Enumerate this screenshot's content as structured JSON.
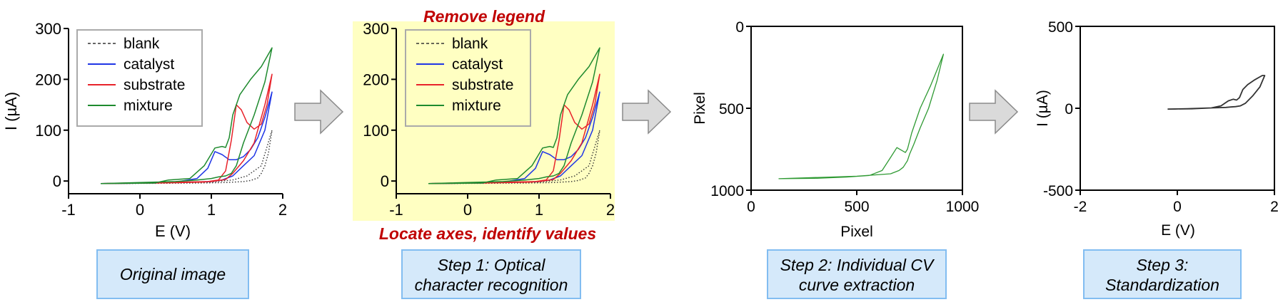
{
  "colors": {
    "blank": "#333333",
    "catalyst": "#1f35e6",
    "substrate": "#e8222a",
    "mixture": "#1e8a2e",
    "extracted": "#2f9a33",
    "standardized": "#333333",
    "highlight": "#ffffc2",
    "callout": "#c00000",
    "step_box_fill": "#d5e9fa",
    "step_box_border": "#82bdf1",
    "arrow_fill": "#dadada",
    "arrow_stroke": "#8a8a8a"
  },
  "legend": [
    {
      "key": "blank",
      "label": "blank"
    },
    {
      "key": "catalyst",
      "label": "catalyst"
    },
    {
      "key": "substrate",
      "label": "substrate"
    },
    {
      "key": "mixture",
      "label": "mixture"
    }
  ],
  "captions": {
    "original": [
      "Original image"
    ],
    "step1": [
      "Step 1: Optical",
      "character recognition"
    ],
    "step2": [
      "Step 2: Individual CV",
      "curve extraction"
    ],
    "step3": [
      "Step 3:",
      "Standardization"
    ]
  },
  "annotations": {
    "remove_legend": "Remove legend",
    "locate_axes": "Locate axes, identify values"
  },
  "chart_data": [
    {
      "id": "original",
      "type": "line",
      "title": "Original image",
      "xlabel": "E (V)",
      "ylabel": "I (µA)",
      "xlim": [
        -1,
        2
      ],
      "ylim": [
        -25,
        300
      ],
      "xticks": [
        -1,
        0,
        1,
        2
      ],
      "yticks": [
        0,
        100,
        200,
        300
      ],
      "legend_position": "top-left",
      "series": [
        {
          "name": "blank",
          "style": "dotted",
          "x": [
            -0.55,
            0.2,
            0.8,
            1.2,
            1.45,
            1.55,
            1.65,
            1.7,
            1.75,
            1.8,
            1.85,
            1.85,
            1.7,
            1.5,
            1.3,
            1.0,
            0.5,
            0.0,
            -0.55
          ],
          "y": [
            -5,
            -4.5,
            -4,
            -3,
            -1,
            1,
            6,
            15,
            30,
            55,
            100,
            100,
            30,
            10,
            2,
            -2,
            -3,
            -4,
            -5
          ]
        },
        {
          "name": "catalyst",
          "style": "solid",
          "x": [
            -0.55,
            0.2,
            0.5,
            0.8,
            0.95,
            1.05,
            1.15,
            1.25,
            1.35,
            1.45,
            1.55,
            1.65,
            1.75,
            1.85,
            1.85,
            1.75,
            1.6,
            1.45,
            1.3,
            1.15,
            1.0,
            0.7,
            0.3,
            -0.1,
            -0.55
          ],
          "y": [
            -5,
            -4,
            -2,
            5,
            25,
            58,
            52,
            42,
            42,
            48,
            62,
            85,
            125,
            175,
            175,
            100,
            50,
            30,
            10,
            2,
            -1,
            -2,
            -3,
            -4,
            -5
          ]
        },
        {
          "name": "substrate",
          "style": "solid",
          "x": [
            -0.55,
            0.2,
            0.6,
            0.9,
            1.1,
            1.2,
            1.28,
            1.35,
            1.42,
            1.5,
            1.6,
            1.7,
            1.78,
            1.85,
            1.85,
            1.75,
            1.6,
            1.45,
            1.3,
            1.2,
            1.0,
            0.6,
            0.2,
            -0.55
          ],
          "y": [
            -5,
            -4,
            -3,
            -2,
            2,
            20,
            80,
            150,
            140,
            115,
            102,
            112,
            150,
            210,
            210,
            150,
            75,
            40,
            15,
            3,
            -1,
            -2,
            -3,
            -5
          ]
        },
        {
          "name": "mixture",
          "style": "solid",
          "x": [
            -0.55,
            0.2,
            0.4,
            0.7,
            0.9,
            1.05,
            1.15,
            1.2,
            1.25,
            1.3,
            1.4,
            1.55,
            1.7,
            1.85,
            1.85,
            1.75,
            1.6,
            1.45,
            1.35,
            1.28,
            1.2,
            1.1,
            1.0,
            0.8,
            0.5,
            -0.55
          ],
          "y": [
            -5,
            -4,
            2,
            5,
            30,
            65,
            68,
            66,
            85,
            130,
            170,
            200,
            225,
            262,
            262,
            195,
            130,
            75,
            30,
            15,
            10,
            8,
            5,
            2,
            -1,
            -5
          ]
        }
      ]
    },
    {
      "id": "step1",
      "type": "line",
      "title": "Step 1: Optical character recognition",
      "xlabel": "",
      "ylabel": "",
      "xlim": [
        -1,
        2
      ],
      "ylim": [
        -25,
        300
      ],
      "xticks": [
        -1,
        0,
        1,
        2
      ],
      "yticks": [
        0,
        100,
        200,
        300
      ],
      "legend_position": "top-left",
      "series": [
        {
          "name": "blank",
          "style": "dotted",
          "x": [
            -0.55,
            0.2,
            0.8,
            1.2,
            1.45,
            1.55,
            1.65,
            1.7,
            1.75,
            1.8,
            1.85,
            1.85,
            1.7,
            1.5,
            1.3,
            1.0,
            0.5,
            0.0,
            -0.55
          ],
          "y": [
            -5,
            -4.5,
            -4,
            -3,
            -1,
            1,
            6,
            15,
            30,
            55,
            100,
            100,
            30,
            10,
            2,
            -2,
            -3,
            -4,
            -5
          ]
        },
        {
          "name": "catalyst",
          "style": "solid",
          "x": [
            -0.55,
            0.2,
            0.5,
            0.8,
            0.95,
            1.05,
            1.15,
            1.25,
            1.35,
            1.45,
            1.55,
            1.65,
            1.75,
            1.85,
            1.85,
            1.75,
            1.6,
            1.45,
            1.3,
            1.15,
            1.0,
            0.7,
            0.3,
            -0.1,
            -0.55
          ],
          "y": [
            -5,
            -4,
            -2,
            5,
            25,
            58,
            52,
            42,
            42,
            48,
            62,
            85,
            125,
            175,
            175,
            100,
            50,
            30,
            10,
            2,
            -1,
            -2,
            -3,
            -4,
            -5
          ]
        },
        {
          "name": "substrate",
          "style": "solid",
          "x": [
            -0.55,
            0.2,
            0.6,
            0.9,
            1.1,
            1.2,
            1.28,
            1.35,
            1.42,
            1.5,
            1.6,
            1.7,
            1.78,
            1.85,
            1.85,
            1.75,
            1.6,
            1.45,
            1.3,
            1.2,
            1.0,
            0.6,
            0.2,
            -0.55
          ],
          "y": [
            -5,
            -4,
            -3,
            -2,
            2,
            20,
            80,
            150,
            140,
            115,
            102,
            112,
            150,
            210,
            210,
            150,
            75,
            40,
            15,
            3,
            -1,
            -2,
            -3,
            -5
          ]
        },
        {
          "name": "mixture",
          "style": "solid",
          "x": [
            -0.55,
            0.2,
            0.4,
            0.7,
            0.9,
            1.05,
            1.15,
            1.2,
            1.25,
            1.3,
            1.4,
            1.55,
            1.7,
            1.85,
            1.85,
            1.75,
            1.6,
            1.45,
            1.35,
            1.28,
            1.2,
            1.1,
            1.0,
            0.8,
            0.5,
            -0.55
          ],
          "y": [
            -5,
            -4,
            2,
            5,
            30,
            65,
            68,
            66,
            85,
            130,
            170,
            200,
            225,
            262,
            262,
            195,
            130,
            75,
            30,
            15,
            10,
            8,
            5,
            2,
            -1,
            -5
          ]
        }
      ]
    },
    {
      "id": "step2",
      "type": "line",
      "title": "Step 2: Individual CV curve extraction",
      "xlabel": "Pixel",
      "ylabel": "Pixel",
      "xlim": [
        0,
        1000
      ],
      "ylim": [
        1000,
        0
      ],
      "xticks": [
        0,
        500,
        1000
      ],
      "yticks": [
        0,
        500,
        1000
      ],
      "series": [
        {
          "name": "mixture",
          "style": "solid",
          "x": [
            130,
            300,
            450,
            560,
            620,
            660,
            690,
            710,
            730,
            740,
            760,
            800,
            850,
            910,
            910,
            880,
            840,
            800,
            770,
            750,
            740,
            720,
            700,
            660,
            500,
            130
          ],
          "y": [
            930,
            928,
            920,
            910,
            880,
            800,
            740,
            755,
            770,
            750,
            650,
            500,
            360,
            170,
            170,
            330,
            500,
            620,
            720,
            780,
            820,
            860,
            880,
            900,
            915,
            930
          ]
        }
      ]
    },
    {
      "id": "step3",
      "type": "line",
      "title": "Step 3: Standardization",
      "xlabel": "E (V)",
      "ylabel": "I (µA)",
      "xlim": [
        -2,
        2
      ],
      "ylim": [
        -500,
        500
      ],
      "xticks": [
        -2,
        0,
        2
      ],
      "yticks": [
        -500,
        0,
        500
      ],
      "series": [
        {
          "name": "mixture",
          "style": "solid",
          "x": [
            -0.2,
            0.3,
            0.7,
            0.9,
            1.05,
            1.15,
            1.22,
            1.28,
            1.35,
            1.45,
            1.6,
            1.75,
            1.8,
            1.8,
            1.7,
            1.55,
            1.4,
            1.3,
            1.2,
            1.1,
            1.0,
            0.7,
            0.2,
            -0.2
          ],
          "y": [
            -5,
            -3,
            2,
            15,
            45,
            55,
            50,
            65,
            115,
            145,
            175,
            200,
            200,
            200,
            130,
            75,
            30,
            15,
            10,
            8,
            5,
            2,
            -3,
            -5
          ]
        }
      ]
    }
  ]
}
